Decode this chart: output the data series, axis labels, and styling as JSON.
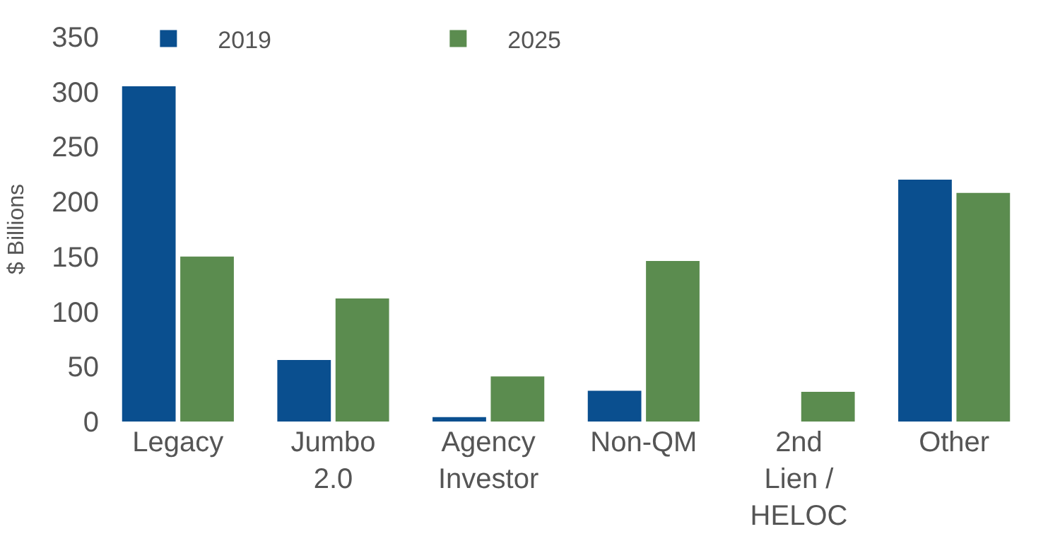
{
  "chart_data": {
    "type": "bar",
    "ylabel": "$ Billions",
    "categories": [
      "Legacy",
      "Jumbo\n2.0",
      "Agency\nInvestor",
      "Non-QM",
      "2nd\nLien /\nHELOC",
      "Other"
    ],
    "series": [
      {
        "name": "2019",
        "color": "#0a4f8f",
        "values": [
          305,
          56,
          4,
          28,
          null,
          220
        ]
      },
      {
        "name": "2025",
        "color": "#5b8c4f",
        "values": [
          150,
          112,
          41,
          146,
          27,
          208
        ]
      }
    ],
    "ylim": [
      0,
      350
    ],
    "yticks": [
      0,
      50,
      100,
      150,
      200,
      250,
      300,
      350
    ],
    "legend": "top"
  }
}
